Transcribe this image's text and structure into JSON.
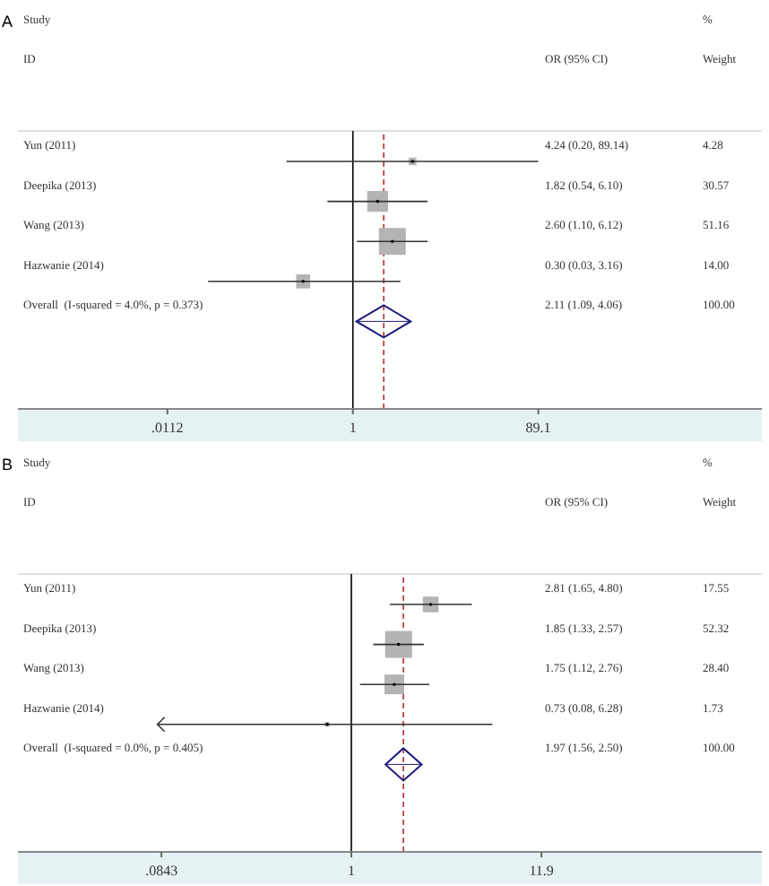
{
  "chart_data": [
    {
      "type": "scatter",
      "title": "A",
      "orientation": "horizontal",
      "log": "x",
      "categories": [
        "Yun (2011)",
        "Deepika (2013)",
        "Wang (2013)",
        "Hazwanie (2014)",
        "Overall  (I-squared = 4.0%, p = 0.373)"
      ],
      "xlim": [
        0.0003,
        20000
      ],
      "xticks": [
        {
          "value": 0.0112,
          "label": ".0112"
        },
        1,
        {
          "value": 89.1,
          "label": "89.1"
        }
      ],
      "series": [
        {
          "type": "bubble",
          "marker": "square",
          "color": "#b4b4b4",
          "values": [
            4.24,
            1.82,
            2.6,
            0.3,
            null
          ],
          "errors": [
            [
              0.2,
              89.14
            ],
            [
              0.54,
              6.1
            ],
            [
              1.1,
              6.12
            ],
            [
              0.03,
              3.16
            ],
            null
          ],
          "sizes": [
            0.08,
            0.6,
            1,
            0.27,
            null
          ]
        },
        {
          "type": "scatter",
          "marker": "diamond",
          "color": "#1c1c7c",
          "values": [
            null,
            null,
            null,
            null,
            2.11
          ],
          "errors": [
            null,
            null,
            null,
            null,
            [
              1.09,
              4.06
            ]
          ]
        }
      ],
      "ref_lines": [
        {
          "axis": "x",
          "value": 1,
          "color": "#000000",
          "line_style": "solid"
        },
        {
          "axis": "x",
          "value": 2.11,
          "color": "#b03030",
          "line_style": "dashed"
        }
      ],
      "annotations": [
        "Study",
        "ID",
        "OR (95% CI)",
        "%",
        "Weight",
        "4.24 (0.20, 89.14)",
        "4.28",
        "1.82 (0.54, 6.10)",
        "30.57",
        "2.60 (1.10, 6.12)",
        "51.16",
        "0.30 (0.03, 3.16)",
        "14.00",
        "2.11 (1.09, 4.06)",
        "100.00"
      ]
    },
    {
      "type": "scatter",
      "title": "B",
      "orientation": "horizontal",
      "log": "x",
      "categories": [
        "Yun (2011)",
        "Deepika (2013)",
        "Wang (2013)",
        "Hazwanie (2014)",
        "Overall  (I-squared = 0.0%, p = 0.405)"
      ],
      "xlim": [
        0.013,
        210
      ],
      "xticks": [
        {
          "value": 0.0843,
          "label": ".0843"
        },
        1,
        {
          "value": 11.9,
          "label": "11.9"
        }
      ],
      "series": [
        {
          "type": "bubble",
          "marker": "square",
          "color": "#b4b4b4",
          "values": [
            2.81,
            1.85,
            1.75,
            0.73,
            null
          ],
          "errors": [
            [
              1.65,
              4.8
            ],
            [
              1.33,
              2.57
            ],
            [
              1.12,
              2.76
            ],
            [
              0.08,
              6.28
            ],
            null
          ],
          "sizes": [
            0.34,
            1,
            0.54,
            0.03,
            null
          ]
        },
        {
          "type": "scatter",
          "marker": "diamond",
          "color": "#1c1c7c",
          "values": [
            null,
            null,
            null,
            null,
            1.97
          ],
          "errors": [
            null,
            null,
            null,
            null,
            [
              1.56,
              2.5
            ]
          ]
        }
      ],
      "ref_lines": [
        {
          "axis": "x",
          "value": 1,
          "color": "#000000",
          "line_style": "solid"
        },
        {
          "axis": "x",
          "value": 1.97,
          "color": "#b03030",
          "line_style": "dashed"
        }
      ],
      "annotations": [
        "Study",
        "ID",
        "OR (95% CI)",
        "%",
        "Weight",
        "2.81 (1.65, 4.80)",
        "17.55",
        "1.85 (1.33, 2.57)",
        "52.32",
        "1.75 (1.12, 2.76)",
        "28.40",
        "0.73 (0.08, 6.28)",
        "1.73",
        "1.97 (1.56, 2.50)",
        "100.00"
      ]
    }
  ]
}
